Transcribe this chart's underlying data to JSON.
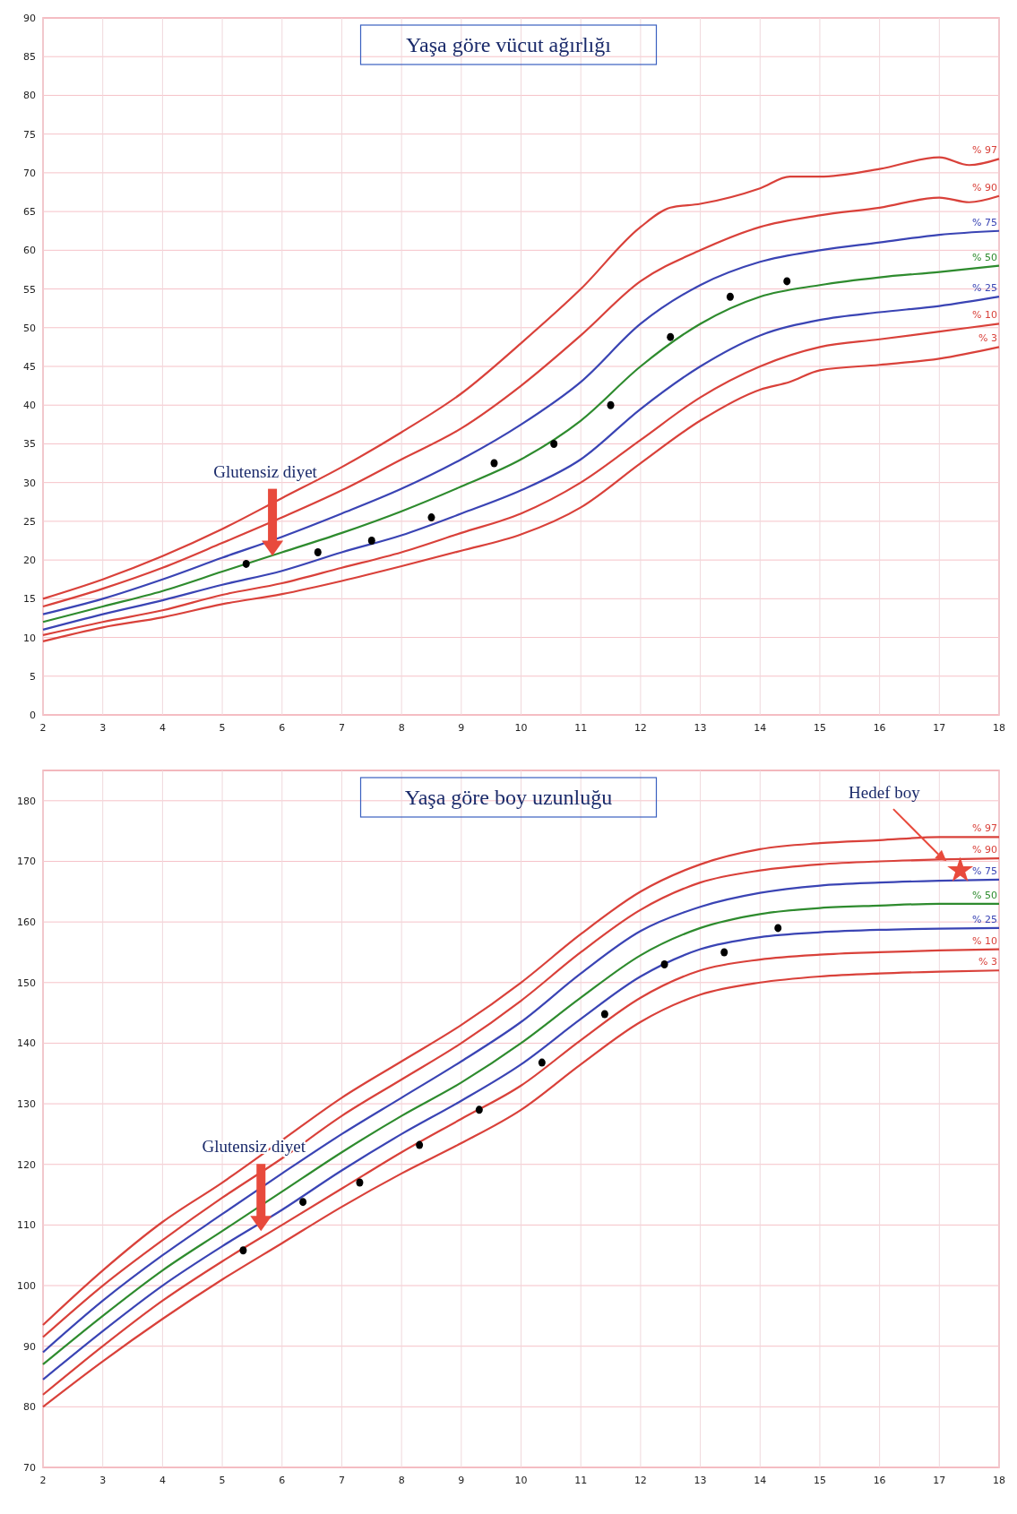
{
  "chart_data": [
    {
      "type": "line",
      "title": "Yaşa göre vücut ağırlığı",
      "xlim": [
        2,
        18
      ],
      "xticks": [
        2,
        3,
        4,
        5,
        6,
        7,
        8,
        9,
        10,
        11,
        12,
        13,
        14,
        15,
        16,
        17,
        18
      ],
      "ylim": [
        0,
        90
      ],
      "yticks": [
        0,
        5,
        10,
        15,
        20,
        25,
        30,
        35,
        40,
        45,
        50,
        55,
        60,
        65,
        70,
        75,
        80,
        85,
        90
      ],
      "grid": true,
      "legend": "right",
      "annotations": [
        "Glutensiz diyet"
      ],
      "series": [
        {
          "name": "% 97",
          "color": "#d9413a",
          "x": [
            2,
            3,
            4,
            5,
            6,
            7,
            8,
            9,
            10,
            11,
            12,
            12.5,
            13,
            14,
            14.5,
            15,
            16,
            17,
            17.5,
            18
          ],
          "values": [
            15,
            17.5,
            20.5,
            24,
            28,
            32,
            36.5,
            41.5,
            48,
            55,
            63,
            65.5,
            66,
            68,
            69.5,
            69.5,
            70.5,
            72,
            71,
            71.8
          ]
        },
        {
          "name": "% 90",
          "color": "#d9413a",
          "x": [
            2,
            3,
            4,
            5,
            6,
            7,
            8,
            9,
            10,
            11,
            12,
            13,
            14,
            15,
            16,
            17,
            17.5,
            18
          ],
          "values": [
            14,
            16.3,
            19,
            22.2,
            25.5,
            29,
            33,
            37,
            42.5,
            49,
            56,
            60,
            63,
            64.5,
            65.5,
            66.8,
            66.2,
            67
          ]
        },
        {
          "name": "% 75",
          "color": "#3a44b4",
          "x": [
            2,
            3,
            4,
            5,
            6,
            7,
            8,
            9,
            10,
            11,
            12,
            13,
            14,
            15,
            16,
            17,
            18
          ],
          "values": [
            13,
            15,
            17.5,
            20.3,
            23,
            26,
            29.2,
            33,
            37.5,
            43,
            50.5,
            55.5,
            58.5,
            60,
            61,
            62,
            62.5
          ]
        },
        {
          "name": "% 50",
          "color": "#2e8b2e",
          "x": [
            2,
            3,
            4,
            5,
            6,
            7,
            8,
            9,
            10,
            11,
            12,
            13,
            14,
            15,
            16,
            17,
            18
          ],
          "values": [
            12,
            14,
            16,
            18.5,
            21,
            23.5,
            26.3,
            29.5,
            33,
            38,
            45,
            50.5,
            54,
            55.5,
            56.5,
            57.2,
            58
          ]
        },
        {
          "name": "% 25",
          "color": "#3a44b4",
          "x": [
            2,
            3,
            4,
            5,
            6,
            7,
            8,
            9,
            10,
            11,
            12,
            13,
            14,
            15,
            16,
            17,
            18
          ],
          "values": [
            11,
            13,
            14.8,
            16.8,
            18.6,
            21,
            23.2,
            26,
            29,
            33,
            39.5,
            45,
            49,
            51,
            52,
            52.8,
            54
          ]
        },
        {
          "name": "% 10",
          "color": "#d9413a",
          "x": [
            2,
            3,
            4,
            5,
            6,
            7,
            8,
            9,
            10,
            11,
            12,
            13,
            14,
            15,
            16,
            17,
            18
          ],
          "values": [
            10.3,
            12,
            13.5,
            15.5,
            17,
            19,
            21,
            23.5,
            26,
            30,
            35.5,
            41,
            45,
            47.5,
            48.5,
            49.5,
            50.5
          ]
        },
        {
          "name": "% 3",
          "color": "#d9413a",
          "x": [
            2,
            3,
            4,
            5,
            6,
            7,
            8,
            9,
            10,
            11,
            12,
            13,
            14,
            14.5,
            15,
            16,
            17,
            18
          ],
          "values": [
            9.5,
            11.3,
            12.6,
            14.3,
            15.6,
            17.3,
            19.2,
            21.2,
            23.3,
            26.8,
            32.5,
            38,
            42,
            43,
            44.5,
            45.2,
            46,
            47.5
          ]
        },
        {
          "type": "scatter",
          "color": "#000000",
          "marker": "circle",
          "x": [
            5.4,
            6.6,
            7.5,
            8.5,
            9.55,
            10.55,
            11.5,
            12.5,
            13.5,
            14.45
          ],
          "values": [
            19.5,
            21,
            22.5,
            25.5,
            32.5,
            35,
            40,
            48.8,
            54,
            56
          ]
        }
      ]
    },
    {
      "type": "line",
      "title": "Yaşa göre boy uzunluğu",
      "xlim": [
        2,
        18
      ],
      "xticks": [
        2,
        3,
        4,
        5,
        6,
        7,
        8,
        9,
        10,
        11,
        12,
        13,
        14,
        15,
        16,
        17,
        18
      ],
      "ylim": [
        70,
        185
      ],
      "yticks": [
        70,
        80,
        90,
        100,
        110,
        120,
        130,
        140,
        150,
        160,
        170,
        180
      ],
      "grid": true,
      "legend": "right",
      "annotations": [
        "Glutensiz diyet",
        "Hedef boy"
      ],
      "series": [
        {
          "name": "% 97",
          "color": "#d9413a",
          "x": [
            2,
            3,
            4,
            5,
            6,
            7,
            8,
            9,
            10,
            11,
            12,
            13,
            14,
            15,
            16,
            17,
            18
          ],
          "values": [
            93.5,
            102.5,
            110.5,
            117,
            124,
            131,
            137,
            143,
            150,
            158,
            165,
            169.5,
            172,
            173,
            173.5,
            174,
            174
          ]
        },
        {
          "name": "% 90",
          "color": "#d9413a",
          "x": [
            2,
            3,
            4,
            5,
            6,
            7,
            8,
            9,
            10,
            11,
            12,
            13,
            14,
            15,
            16,
            17,
            18
          ],
          "values": [
            91.5,
            100,
            107.5,
            114.5,
            121,
            128,
            134,
            140,
            147,
            155,
            162,
            166.5,
            168.5,
            169.5,
            170,
            170.3,
            170.5
          ]
        },
        {
          "name": "% 75",
          "color": "#3a44b4",
          "x": [
            2,
            3,
            4,
            5,
            6,
            7,
            8,
            9,
            10,
            11,
            12,
            13,
            14,
            15,
            16,
            17,
            18
          ],
          "values": [
            89,
            97.5,
            105,
            111.8,
            118.5,
            125,
            131,
            137,
            143.5,
            151.5,
            158.5,
            162.5,
            164.8,
            166,
            166.5,
            166.8,
            167
          ]
        },
        {
          "name": "% 50",
          "color": "#2e8b2e",
          "x": [
            2,
            3,
            4,
            5,
            6,
            7,
            8,
            9,
            10,
            11,
            12,
            13,
            14,
            15,
            16,
            17,
            18
          ],
          "values": [
            87,
            95,
            102.5,
            109,
            115.5,
            122,
            128,
            133.5,
            140,
            147.5,
            154.5,
            159,
            161.3,
            162.3,
            162.7,
            163,
            163
          ]
        },
        {
          "name": "% 25",
          "color": "#3a44b4",
          "x": [
            2,
            3,
            4,
            5,
            6,
            7,
            8,
            9,
            10,
            11,
            12,
            13,
            14,
            15,
            16,
            17,
            18
          ],
          "values": [
            84.5,
            92.5,
            100,
            106.5,
            112.5,
            119,
            125,
            130.5,
            136.5,
            144,
            151,
            155.5,
            157.5,
            158.3,
            158.7,
            158.9,
            159
          ]
        },
        {
          "name": "% 10",
          "color": "#d9413a",
          "x": [
            2,
            3,
            4,
            5,
            6,
            7,
            8,
            9,
            10,
            11,
            12,
            13,
            14,
            15,
            16,
            17,
            18
          ],
          "values": [
            82,
            90,
            97.5,
            104,
            110,
            116,
            122,
            127.5,
            133,
            140.5,
            147.5,
            152,
            153.8,
            154.6,
            155,
            155.3,
            155.5
          ]
        },
        {
          "name": "% 3",
          "color": "#d9413a",
          "x": [
            2,
            3,
            4,
            5,
            6,
            7,
            8,
            9,
            10,
            11,
            12,
            13,
            14,
            15,
            16,
            17,
            18
          ],
          "values": [
            80,
            87.5,
            94.5,
            101,
            107,
            113,
            118.5,
            123.5,
            129,
            136.5,
            143.5,
            148,
            150,
            151,
            151.5,
            151.8,
            152
          ]
        },
        {
          "type": "scatter",
          "color": "#000000",
          "marker": "circle",
          "x": [
            5.35,
            6.35,
            7.3,
            8.3,
            9.3,
            10.35,
            11.4,
            12.4,
            13.4,
            14.3
          ],
          "values": [
            105.8,
            113.8,
            117,
            123.2,
            129,
            136.8,
            144.8,
            153,
            155,
            159
          ]
        },
        {
          "type": "scatter",
          "color": "#e84a3c",
          "marker": "star",
          "x": [
            17.35
          ],
          "values": [
            168.5
          ]
        }
      ]
    }
  ]
}
